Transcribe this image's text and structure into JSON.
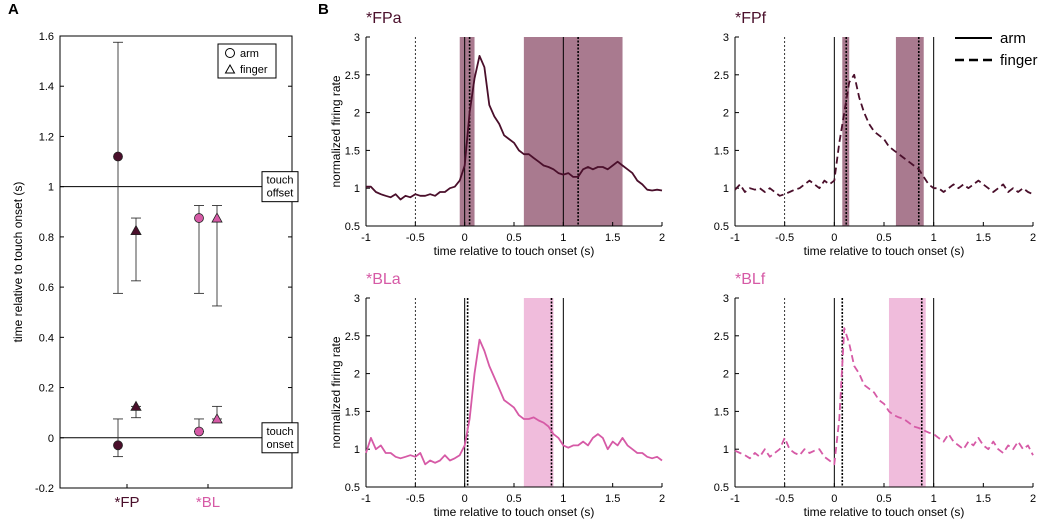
{
  "colors": {
    "fp": "#4a0f2b",
    "bl": "#d65aa6",
    "fp_shade": "#a97a8f",
    "bl_shade": "#f0bcdc"
  },
  "chart_data": [
    {
      "panel": "A",
      "type": "scatter",
      "ylabel": "time relative to touch onset (s)",
      "ylim": [
        -0.2,
        1.6
      ],
      "yticks": [
        "-0.2",
        "0",
        "0.2",
        "0.4",
        "0.6",
        "0.8",
        "1",
        "1.2",
        "1.4",
        "1.6"
      ],
      "categories": [
        "*FP",
        "*BL"
      ],
      "ref_lines": [
        {
          "y": 1,
          "label": [
            "touch",
            "offset"
          ]
        },
        {
          "y": 0,
          "label": [
            "touch",
            "onset"
          ]
        }
      ],
      "legend": {
        "position": "top-right",
        "items": [
          "arm",
          "finger"
        ]
      },
      "points": [
        {
          "group": "*FP",
          "marker": "circle",
          "y": 1.12,
          "lo": 0.575,
          "hi": 1.575,
          "color": "fp"
        },
        {
          "group": "*FP",
          "marker": "triangle",
          "y": 0.825,
          "lo": 0.625,
          "hi": 0.875,
          "color": "fp"
        },
        {
          "group": "*FP",
          "marker": "circle",
          "y": -0.03,
          "lo": -0.075,
          "hi": 0.075,
          "color": "fp"
        },
        {
          "group": "*FP",
          "marker": "triangle",
          "y": 0.125,
          "lo": 0.08,
          "hi": 0.125,
          "color": "fp"
        },
        {
          "group": "*BL",
          "marker": "circle",
          "y": 0.875,
          "lo": 0.575,
          "hi": 0.925,
          "color": "bl"
        },
        {
          "group": "*BL",
          "marker": "triangle",
          "y": 0.875,
          "lo": 0.525,
          "hi": 0.925,
          "color": "bl"
        },
        {
          "group": "*BL",
          "marker": "circle",
          "y": 0.025,
          "lo": 0.025,
          "hi": 0.075,
          "color": "bl"
        },
        {
          "group": "*BL",
          "marker": "triangle",
          "y": 0.075,
          "lo": 0.075,
          "hi": 0.125,
          "color": "bl"
        }
      ]
    },
    {
      "panel": "B",
      "title": "*FPa",
      "type": "line",
      "style": "solid",
      "color": "fp",
      "xlabel": "time relative to touch onset (s)",
      "ylabel": "normalized firing rate",
      "xlim": [
        -1,
        2
      ],
      "ylim": [
        0.5,
        3
      ],
      "xticks": [
        "-1",
        "-0.5",
        "0",
        "0.5",
        "1",
        "1.5",
        "2"
      ],
      "yticks": [
        "0.5",
        "1",
        "1.5",
        "2",
        "2.5",
        "3"
      ],
      "shaded": [
        [
          -0.05,
          0.1
        ],
        [
          0.6,
          1.6
        ]
      ],
      "solid_vlines": [
        0,
        1
      ],
      "dotted_vlines": [
        -0.5,
        0.05,
        1.15
      ],
      "x": [
        -1,
        -0.95,
        -0.9,
        -0.85,
        -0.8,
        -0.75,
        -0.7,
        -0.65,
        -0.6,
        -0.55,
        -0.5,
        -0.45,
        -0.4,
        -0.35,
        -0.3,
        -0.25,
        -0.2,
        -0.15,
        -0.1,
        -0.05,
        0,
        0.05,
        0.1,
        0.15,
        0.2,
        0.25,
        0.3,
        0.35,
        0.4,
        0.45,
        0.5,
        0.55,
        0.6,
        0.65,
        0.7,
        0.75,
        0.8,
        0.85,
        0.9,
        0.95,
        1,
        1.05,
        1.1,
        1.15,
        1.2,
        1.25,
        1.3,
        1.35,
        1.4,
        1.45,
        1.5,
        1.55,
        1.6,
        1.65,
        1.7,
        1.75,
        1.8,
        1.85,
        1.9,
        1.95,
        2
      ],
      "y": [
        1.02,
        1.02,
        0.95,
        0.92,
        0.9,
        0.88,
        0.92,
        0.85,
        0.9,
        0.88,
        0.92,
        0.9,
        0.9,
        0.92,
        0.9,
        0.95,
        0.95,
        1.0,
        1.02,
        1.1,
        1.3,
        2.0,
        2.45,
        2.75,
        2.6,
        2.1,
        1.95,
        1.85,
        1.7,
        1.65,
        1.6,
        1.5,
        1.45,
        1.45,
        1.4,
        1.35,
        1.3,
        1.28,
        1.25,
        1.2,
        1.18,
        1.2,
        1.15,
        1.15,
        1.25,
        1.28,
        1.25,
        1.28,
        1.28,
        1.25,
        1.3,
        1.35,
        1.3,
        1.25,
        1.2,
        1.1,
        1.05,
        0.98,
        0.97,
        0.98,
        0.97
      ]
    },
    {
      "panel": "B",
      "title": "*FPf",
      "type": "line",
      "style": "dashed",
      "color": "fp",
      "xlabel": "time relative to touch onset (s)",
      "ylabel": "",
      "xlim": [
        -1,
        2
      ],
      "ylim": [
        0.5,
        3
      ],
      "xticks": [
        "-1",
        "-0.5",
        "0",
        "0.5",
        "1",
        "1.5",
        "2"
      ],
      "yticks": [
        "0.5",
        "1",
        "1.5",
        "2",
        "2.5",
        "3"
      ],
      "shaded": [
        [
          0.08,
          0.15
        ],
        [
          0.62,
          0.9
        ]
      ],
      "solid_vlines": [
        0,
        1
      ],
      "dotted_vlines": [
        -0.5,
        0.12,
        0.85
      ],
      "legend": {
        "position": "top-right",
        "items": [
          {
            "label": "arm",
            "style": "solid"
          },
          {
            "label": "finger",
            "style": "dashed"
          }
        ]
      },
      "x": [
        -1,
        -0.95,
        -0.9,
        -0.85,
        -0.8,
        -0.75,
        -0.7,
        -0.65,
        -0.6,
        -0.55,
        -0.5,
        -0.45,
        -0.4,
        -0.35,
        -0.3,
        -0.25,
        -0.2,
        -0.15,
        -0.1,
        -0.05,
        0,
        0.05,
        0.1,
        0.15,
        0.2,
        0.25,
        0.3,
        0.35,
        0.4,
        0.45,
        0.5,
        0.55,
        0.6,
        0.65,
        0.7,
        0.75,
        0.8,
        0.85,
        0.9,
        0.95,
        1,
        1.05,
        1.1,
        1.15,
        1.2,
        1.25,
        1.3,
        1.35,
        1.4,
        1.45,
        1.5,
        1.55,
        1.6,
        1.65,
        1.7,
        1.75,
        1.8,
        1.85,
        1.9,
        1.95,
        2
      ],
      "y": [
        0.98,
        1.05,
        0.95,
        1.0,
        0.98,
        1.0,
        0.95,
        1.0,
        0.95,
        0.9,
        0.92,
        0.95,
        0.98,
        1.0,
        1.05,
        1.1,
        1.05,
        1.0,
        1.1,
        1.05,
        1.1,
        1.6,
        2.0,
        2.4,
        2.5,
        2.2,
        2.0,
        1.85,
        1.75,
        1.7,
        1.65,
        1.55,
        1.5,
        1.45,
        1.4,
        1.35,
        1.3,
        1.25,
        1.15,
        1.05,
        1.0,
        1.0,
        0.95,
        1.0,
        1.05,
        1.0,
        1.05,
        1.0,
        1.05,
        1.1,
        1.05,
        1.0,
        0.95,
        1.0,
        1.05,
        0.95,
        1.0,
        0.95,
        1.0,
        0.95,
        0.92
      ]
    },
    {
      "panel": "B",
      "title": "*BLa",
      "type": "line",
      "style": "solid",
      "color": "bl",
      "xlabel": "time relative to touch onset (s)",
      "ylabel": "normalized firing rate",
      "xlim": [
        -1,
        2
      ],
      "ylim": [
        0.5,
        3
      ],
      "xticks": [
        "-1",
        "-0.5",
        "0",
        "0.5",
        "1",
        "1.5",
        "2"
      ],
      "yticks": [
        "0.5",
        "1",
        "1.5",
        "2",
        "2.5",
        "3"
      ],
      "shaded": [
        [
          0.6,
          0.9
        ]
      ],
      "solid_vlines": [
        0,
        1
      ],
      "dotted_vlines": [
        -0.5,
        0.03,
        0.88
      ],
      "x": [
        -1,
        -0.95,
        -0.9,
        -0.85,
        -0.8,
        -0.75,
        -0.7,
        -0.65,
        -0.6,
        -0.55,
        -0.5,
        -0.45,
        -0.4,
        -0.35,
        -0.3,
        -0.25,
        -0.2,
        -0.15,
        -0.1,
        -0.05,
        0,
        0.05,
        0.1,
        0.15,
        0.2,
        0.25,
        0.3,
        0.35,
        0.4,
        0.45,
        0.5,
        0.55,
        0.6,
        0.65,
        0.7,
        0.75,
        0.8,
        0.85,
        0.9,
        0.95,
        1,
        1.05,
        1.1,
        1.15,
        1.2,
        1.25,
        1.3,
        1.35,
        1.4,
        1.45,
        1.5,
        1.55,
        1.6,
        1.65,
        1.7,
        1.75,
        1.8,
        1.85,
        1.9,
        1.95,
        2
      ],
      "y": [
        0.95,
        1.15,
        1.0,
        1.05,
        0.95,
        0.95,
        0.9,
        0.88,
        0.9,
        0.92,
        0.9,
        0.95,
        0.8,
        0.85,
        0.82,
        0.85,
        0.92,
        0.85,
        0.88,
        0.92,
        1.05,
        1.4,
        2.0,
        2.45,
        2.3,
        2.1,
        1.95,
        1.8,
        1.65,
        1.6,
        1.55,
        1.45,
        1.4,
        1.4,
        1.42,
        1.38,
        1.35,
        1.3,
        1.2,
        1.15,
        1.05,
        1.02,
        1.05,
        1.05,
        1.1,
        1.05,
        1.15,
        1.2,
        1.15,
        1.0,
        1.1,
        1.05,
        1.15,
        1.05,
        1.0,
        0.95,
        0.95,
        0.9,
        0.88,
        0.9,
        0.85
      ]
    },
    {
      "panel": "B",
      "title": "*BLf",
      "type": "line",
      "style": "dashed",
      "color": "bl",
      "xlabel": "time relative to touch onset (s)",
      "ylabel": "",
      "xlim": [
        -1,
        2
      ],
      "ylim": [
        0.5,
        3
      ],
      "xticks": [
        "-1",
        "-0.5",
        "0",
        "0.5",
        "1",
        "1.5",
        "2"
      ],
      "yticks": [
        "0.5",
        "1",
        "1.5",
        "2",
        "2.5",
        "3"
      ],
      "shaded": [
        [
          0.55,
          0.92
        ]
      ],
      "solid_vlines": [
        0,
        1
      ],
      "dotted_vlines": [
        -0.5,
        0.08,
        0.88
      ],
      "x": [
        -1,
        -0.95,
        -0.9,
        -0.85,
        -0.8,
        -0.75,
        -0.7,
        -0.65,
        -0.6,
        -0.55,
        -0.5,
        -0.45,
        -0.4,
        -0.35,
        -0.3,
        -0.25,
        -0.2,
        -0.15,
        -0.1,
        -0.05,
        0,
        0.05,
        0.1,
        0.15,
        0.2,
        0.25,
        0.3,
        0.35,
        0.4,
        0.45,
        0.5,
        0.55,
        0.6,
        0.65,
        0.7,
        0.75,
        0.8,
        0.85,
        0.9,
        0.95,
        1,
        1.05,
        1.1,
        1.15,
        1.2,
        1.25,
        1.3,
        1.35,
        1.4,
        1.45,
        1.5,
        1.55,
        1.6,
        1.65,
        1.7,
        1.75,
        1.8,
        1.85,
        1.9,
        1.95,
        2
      ],
      "y": [
        0.98,
        0.95,
        0.92,
        0.88,
        0.95,
        0.9,
        1.0,
        0.9,
        0.95,
        1.0,
        1.15,
        1.0,
        0.95,
        0.92,
        1.0,
        0.95,
        0.98,
        1.0,
        0.9,
        0.85,
        0.8,
        1.4,
        2.6,
        2.4,
        2.1,
        2.0,
        1.85,
        1.8,
        1.75,
        1.65,
        1.6,
        1.5,
        1.45,
        1.42,
        1.4,
        1.35,
        1.3,
        1.28,
        1.25,
        1.22,
        1.2,
        1.15,
        1.1,
        1.2,
        1.1,
        1.05,
        1.0,
        1.1,
        1.05,
        1.15,
        1.05,
        1.0,
        1.1,
        1.0,
        0.95,
        1.05,
        1.0,
        1.1,
        1.0,
        1.05,
        0.92
      ]
    }
  ]
}
